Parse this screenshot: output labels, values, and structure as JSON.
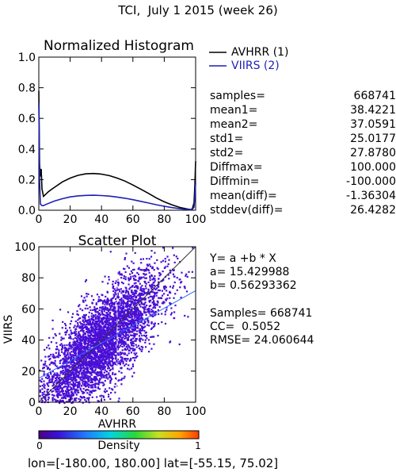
{
  "title": "TCI,  July 1 2015 (week 26)",
  "histogram": {
    "title": "Normalized Histogram",
    "legend": [
      {
        "label": "AVHRR (1)",
        "color": "#000000"
      },
      {
        "label": "VIIRS (2)",
        "color": "#1f1fb4"
      }
    ],
    "yticks": [
      "0.0",
      "0.2",
      "0.4",
      "0.6",
      "0.8",
      "1.0"
    ],
    "xticks": [
      "0",
      "20",
      "40",
      "60",
      "80",
      "100"
    ]
  },
  "stats": [
    {
      "label": "samples=",
      "value": "668741"
    },
    {
      "label": "mean1=",
      "value": "38.4221"
    },
    {
      "label": "mean2=",
      "value": "37.0591"
    },
    {
      "label": "std1=",
      "value": "25.0177"
    },
    {
      "label": "std2=",
      "value": "27.8780"
    },
    {
      "label": "Diffmax=",
      "value": "100.000"
    },
    {
      "label": "Diffmin=",
      "value": "-100.000"
    },
    {
      "label": "mean(diff)=",
      "value": "-1.36304"
    },
    {
      "label": "stddev(diff)=",
      "value": "26.4282"
    }
  ],
  "scatter": {
    "title": "Scatter Plot",
    "xlabel": "AVHRR",
    "ylabel": "VIIRS",
    "xticks": [
      "0",
      "20",
      "40",
      "60",
      "80",
      "100"
    ],
    "yticks": [
      "0",
      "20",
      "40",
      "60",
      "80",
      "100"
    ],
    "cloud_color": "#4a0fd6"
  },
  "regression": {
    "equation": "Y= a +b * X",
    "a_line": "a= 15.429988",
    "b_line": "b= 0.56293362",
    "samples_line": "Samples= 668741",
    "cc_line": "CC=  0.5052",
    "rmse_line": "RMSE= 24.060644"
  },
  "colorbar": {
    "label": "Density",
    "min_label": "0",
    "max_label": "1"
  },
  "footer": "lon=[-180.00, 180.00] lat=[-55.15, 75.02]",
  "chart_data": [
    {
      "type": "line",
      "title": "Normalized Histogram",
      "xlabel": "",
      "ylabel": "",
      "xlim": [
        0,
        100
      ],
      "ylim": [
        0,
        1
      ],
      "series": [
        {
          "name": "AVHRR (1)",
          "color": "#000000",
          "x": [
            0,
            0.5,
            1,
            1.5,
            2,
            3,
            4,
            6,
            8,
            10,
            15,
            20,
            25,
            30,
            35,
            40,
            45,
            50,
            55,
            60,
            65,
            70,
            75,
            80,
            85,
            90,
            95,
            97,
            98,
            99,
            99.5,
            100
          ],
          "y": [
            0.78,
            0.3,
            0.22,
            0.27,
            0.14,
            0.09,
            0.1,
            0.12,
            0.135,
            0.15,
            0.185,
            0.21,
            0.228,
            0.238,
            0.24,
            0.236,
            0.226,
            0.21,
            0.19,
            0.165,
            0.138,
            0.11,
            0.08,
            0.055,
            0.035,
            0.018,
            0.008,
            0.004,
            0.012,
            0.05,
            0.16,
            0.32
          ]
        },
        {
          "name": "VIIRS (2)",
          "color": "#1f1fb4",
          "x": [
            0,
            0.5,
            1,
            1.5,
            2,
            3,
            5,
            10,
            15,
            20,
            25,
            30,
            35,
            40,
            45,
            50,
            55,
            60,
            65,
            70,
            75,
            80,
            85,
            90,
            95,
            97,
            98,
            99,
            99.5,
            100
          ],
          "y": [
            0.7,
            0.2,
            0.04,
            0.035,
            0.03,
            0.03,
            0.04,
            0.06,
            0.075,
            0.087,
            0.094,
            0.097,
            0.098,
            0.096,
            0.092,
            0.086,
            0.078,
            0.069,
            0.058,
            0.047,
            0.036,
            0.026,
            0.017,
            0.01,
            0.004,
            0.003,
            0.006,
            0.02,
            0.08,
            0.18
          ]
        }
      ]
    },
    {
      "type": "scatter",
      "title": "Scatter Plot",
      "xlabel": "AVHRR",
      "ylabel": "VIIRS",
      "xlim": [
        0,
        100
      ],
      "ylim": [
        0,
        100
      ],
      "samples": 668741,
      "regression": {
        "a": 15.429988,
        "b": 0.56293362
      },
      "cc": 0.5052,
      "rmse": 24.060644
    }
  ]
}
